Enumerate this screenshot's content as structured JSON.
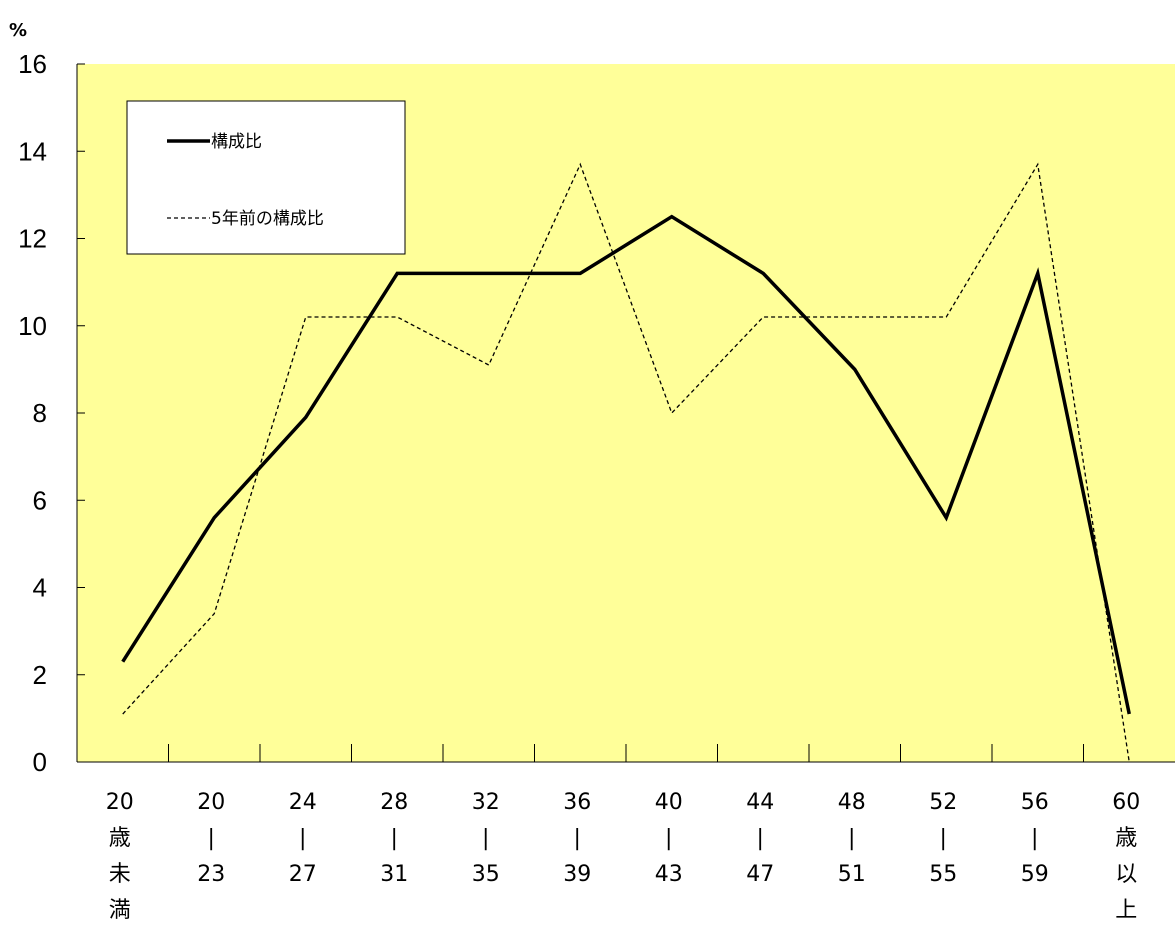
{
  "chart_data": {
    "type": "line",
    "ylabel": "%",
    "ylim": [
      0,
      16
    ],
    "yticks": [
      0,
      2,
      4,
      6,
      8,
      10,
      12,
      14,
      16
    ],
    "grid": false,
    "background_color": "#ffff99",
    "legend_position": "top-left",
    "categories": [
      [
        "20",
        "歳",
        "未",
        "満"
      ],
      [
        "20",
        "|",
        "23"
      ],
      [
        "24",
        "|",
        "27"
      ],
      [
        "28",
        "|",
        "31"
      ],
      [
        "32",
        "|",
        "35"
      ],
      [
        "36",
        "|",
        "39"
      ],
      [
        "40",
        "|",
        "43"
      ],
      [
        "44",
        "|",
        "47"
      ],
      [
        "48",
        "|",
        "51"
      ],
      [
        "52",
        "|",
        "55"
      ],
      [
        "56",
        "|",
        "59"
      ],
      [
        "60",
        "歳",
        "以",
        "上"
      ]
    ],
    "series": [
      {
        "name": "構成比",
        "style": "solid",
        "color": "#000000",
        "values": [
          2.3,
          5.6,
          7.9,
          11.2,
          11.2,
          11.2,
          12.5,
          11.2,
          9.0,
          5.6,
          11.2,
          1.1
        ]
      },
      {
        "name": "5年前の構成比",
        "style": "dashed",
        "color": "#000000",
        "values": [
          1.1,
          3.4,
          10.2,
          10.2,
          9.1,
          13.7,
          8.0,
          10.2,
          10.2,
          10.2,
          13.7,
          0.0
        ]
      }
    ]
  }
}
